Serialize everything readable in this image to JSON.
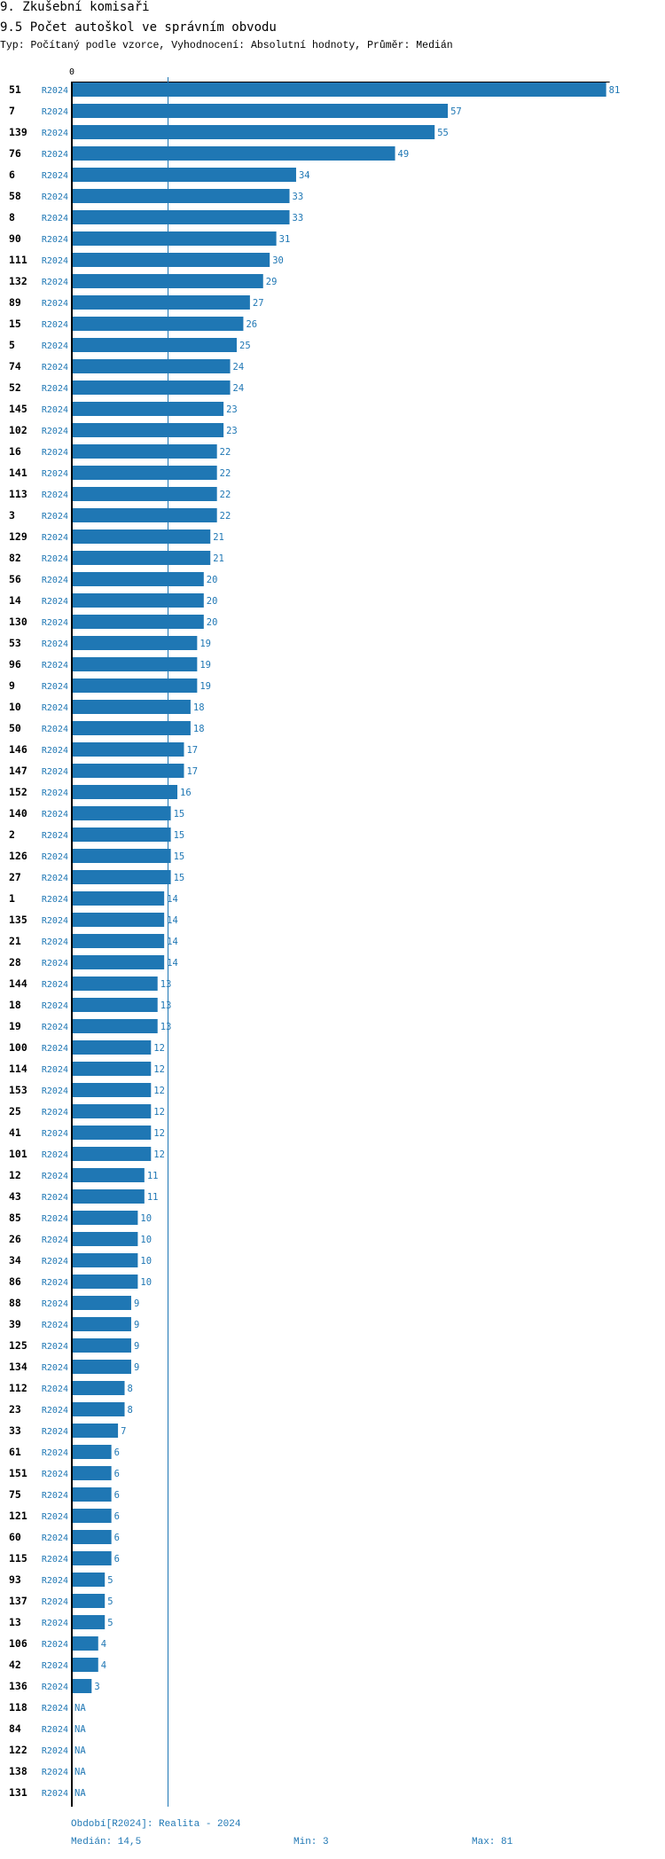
{
  "header": {
    "title": "9. Zkušební komisaři",
    "subtitle": "9.5 Počet autoškol ve správním obvodu",
    "meta": "Typ: Počítaný podle vzorce, Vyhodnocení: Absolutní hodnoty, Průměr: Medián"
  },
  "colors": {
    "bar": "#1f77b4",
    "label": "#1f77b4",
    "axis": "#000000",
    "median_line": "#1f77b4"
  },
  "chart_data": {
    "type": "bar",
    "orientation": "horizontal",
    "x_tick_label": "0",
    "xlim": [
      0,
      81
    ],
    "series_label": "R2024",
    "na_label": "NA",
    "median": 14.5,
    "categories": [
      "51",
      "7",
      "139",
      "76",
      "6",
      "58",
      "8",
      "90",
      "111",
      "132",
      "89",
      "15",
      "5",
      "74",
      "52",
      "145",
      "102",
      "16",
      "141",
      "113",
      "3",
      "129",
      "82",
      "56",
      "14",
      "130",
      "53",
      "96",
      "9",
      "10",
      "50",
      "146",
      "147",
      "152",
      "140",
      "2",
      "126",
      "27",
      "1",
      "135",
      "21",
      "28",
      "144",
      "18",
      "19",
      "100",
      "114",
      "153",
      "25",
      "41",
      "101",
      "12",
      "43",
      "85",
      "26",
      "34",
      "86",
      "88",
      "39",
      "125",
      "134",
      "112",
      "23",
      "33",
      "61",
      "151",
      "75",
      "121",
      "60",
      "115",
      "93",
      "137",
      "13",
      "106",
      "42",
      "136",
      "118",
      "84",
      "122",
      "138",
      "131"
    ],
    "values": [
      81,
      57,
      55,
      49,
      34,
      33,
      33,
      31,
      30,
      29,
      27,
      26,
      25,
      24,
      24,
      23,
      23,
      22,
      22,
      22,
      22,
      21,
      21,
      20,
      20,
      20,
      19,
      19,
      19,
      18,
      18,
      17,
      17,
      16,
      15,
      15,
      15,
      15,
      14,
      14,
      14,
      14,
      13,
      13,
      13,
      12,
      12,
      12,
      12,
      12,
      12,
      11,
      11,
      10,
      10,
      10,
      10,
      9,
      9,
      9,
      9,
      8,
      8,
      7,
      6,
      6,
      6,
      6,
      6,
      6,
      5,
      5,
      5,
      4,
      4,
      3,
      null,
      null,
      null,
      null,
      null
    ]
  },
  "footer": {
    "period": "Období[R2024]: Realita - 2024",
    "median": "Medián: 14,5",
    "min": "Min: 3",
    "max": "Max: 81"
  }
}
